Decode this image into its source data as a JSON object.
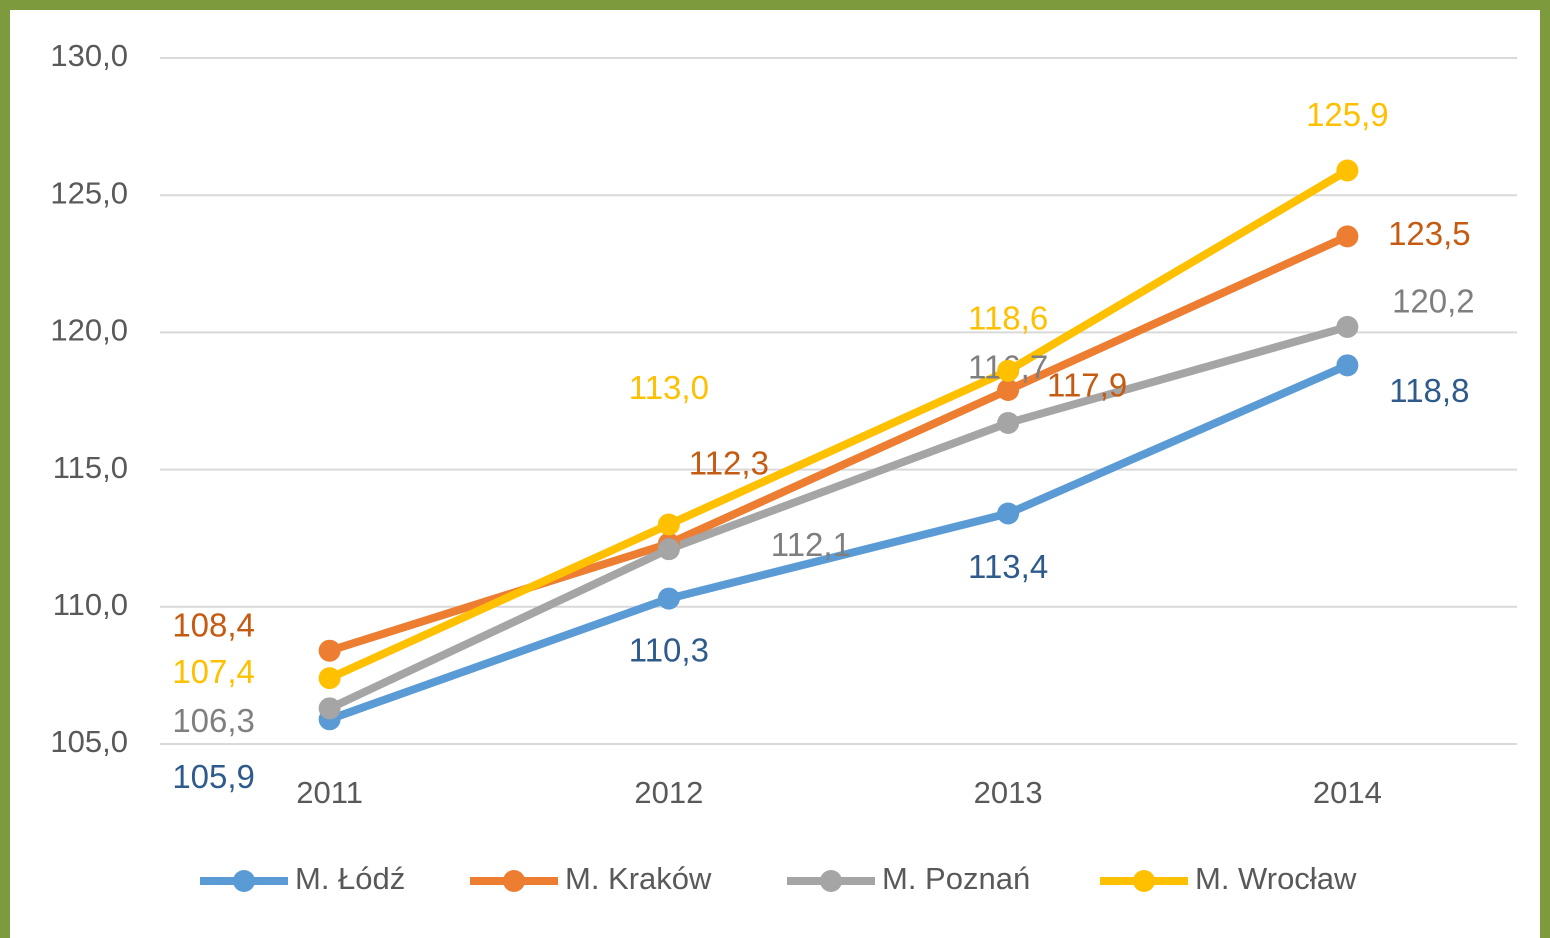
{
  "chart_data": {
    "type": "line",
    "categories": [
      "2011",
      "2012",
      "2013",
      "2014"
    ],
    "ylim": [
      105,
      130
    ],
    "yticks": [
      {
        "value": 105,
        "label": "105,0"
      },
      {
        "value": 110,
        "label": "110,0"
      },
      {
        "value": 115,
        "label": "115,0"
      },
      {
        "value": 120,
        "label": "120,0"
      },
      {
        "value": 125,
        "label": "125,0"
      },
      {
        "value": 130,
        "label": "130,0"
      }
    ],
    "grid": true,
    "legend": "bottom",
    "series": [
      {
        "name": "M. Łódź",
        "color": "#5b9bd5",
        "label_color": "#2f5b8c",
        "values": [
          105.9,
          110.3,
          113.4,
          118.8
        ],
        "value_labels": [
          "105,9",
          "110,3",
          "113,4",
          "118,8"
        ]
      },
      {
        "name": "M. Kraków",
        "color": "#ed7d31",
        "label_color": "#c55a11",
        "values": [
          108.4,
          112.3,
          117.9,
          123.5
        ],
        "value_labels": [
          "108,4",
          "112,3",
          "117,9",
          "123,5"
        ]
      },
      {
        "name": "M. Poznań",
        "color": "#a5a5a5",
        "label_color": "#7f7f7f",
        "values": [
          106.3,
          112.1,
          116.7,
          120.2
        ],
        "value_labels": [
          "106,3",
          "112,1",
          "116,7",
          "120,2"
        ]
      },
      {
        "name": "M. Wrocław",
        "color": "#ffc000",
        "label_color": "#ffc000",
        "values": [
          107.4,
          113.0,
          118.6,
          125.9
        ],
        "value_labels": [
          "107,4",
          "113,0",
          "118,6",
          "125,9"
        ]
      }
    ]
  }
}
